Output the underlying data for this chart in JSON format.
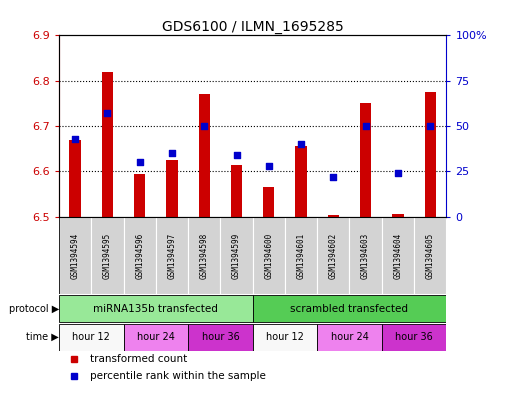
{
  "title": "GDS6100 / ILMN_1695285",
  "samples": [
    "GSM1394594",
    "GSM1394595",
    "GSM1394596",
    "GSM1394597",
    "GSM1394598",
    "GSM1394599",
    "GSM1394600",
    "GSM1394601",
    "GSM1394602",
    "GSM1394603",
    "GSM1394604",
    "GSM1394605"
  ],
  "bar_values": [
    6.67,
    6.82,
    6.595,
    6.625,
    6.77,
    6.615,
    6.565,
    6.655,
    6.503,
    6.75,
    6.505,
    6.775
  ],
  "bar_base": 6.5,
  "percentile_values": [
    43,
    57,
    30,
    35,
    50,
    34,
    28,
    40,
    22,
    50,
    24,
    50
  ],
  "ylim_left": [
    6.5,
    6.9
  ],
  "ylim_right": [
    0,
    100
  ],
  "yticks_left": [
    6.5,
    6.6,
    6.7,
    6.8,
    6.9
  ],
  "yticks_right": [
    0,
    25,
    50,
    75,
    100
  ],
  "yticklabels_right": [
    "0",
    "25",
    "50",
    "75",
    "100%"
  ],
  "grid_values": [
    6.6,
    6.7,
    6.8
  ],
  "bar_color": "#cc0000",
  "dot_color": "#0000cc",
  "sample_cell_color": "#d3d3d3",
  "protocol_groups": [
    {
      "label": "miRNA135b transfected",
      "start": 0,
      "end": 6,
      "color": "#98e898"
    },
    {
      "label": "scrambled transfected",
      "start": 6,
      "end": 12,
      "color": "#55cc55"
    }
  ],
  "time_groups": [
    {
      "label": "hour 12",
      "start": 0,
      "end": 2,
      "color": "#f8f8f8"
    },
    {
      "label": "hour 24",
      "start": 2,
      "end": 4,
      "color": "#ee82ee"
    },
    {
      "label": "hour 36",
      "start": 4,
      "end": 6,
      "color": "#cc33cc"
    },
    {
      "label": "hour 12",
      "start": 6,
      "end": 8,
      "color": "#f8f8f8"
    },
    {
      "label": "hour 24",
      "start": 8,
      "end": 10,
      "color": "#ee82ee"
    },
    {
      "label": "hour 36",
      "start": 10,
      "end": 12,
      "color": "#cc33cc"
    }
  ],
  "legend_items": [
    {
      "label": "transformed count",
      "color": "#cc0000"
    },
    {
      "label": "percentile rank within the sample",
      "color": "#0000cc"
    }
  ],
  "protocol_label": "protocol",
  "time_label": "time",
  "left_axis_color": "#cc0000",
  "right_axis_color": "#0000cc",
  "background_color": "#ffffff"
}
